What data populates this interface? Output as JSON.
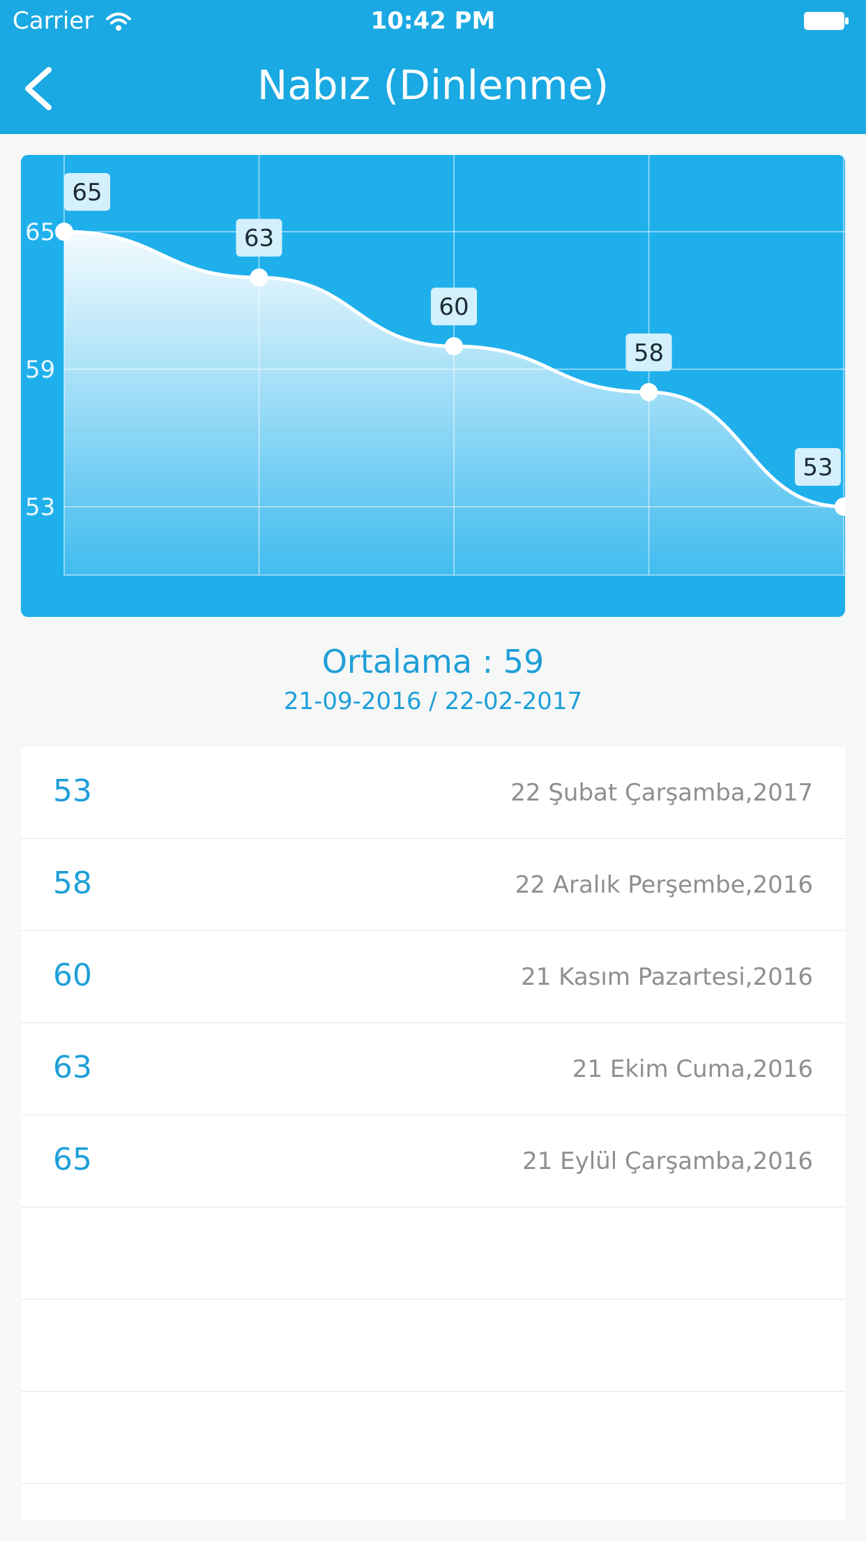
{
  "status_bar": {
    "carrier": "Carrier",
    "time": "10:42 PM"
  },
  "nav": {
    "title": "Nabız (Dinlenme)"
  },
  "chart_data": {
    "type": "area",
    "x": [
      "21-09-2016",
      "21-10-2016",
      "21-11-2016",
      "22-12-2016",
      "22-02-2017"
    ],
    "values": [
      65,
      63,
      60,
      58,
      53
    ],
    "y_ticks": [
      65,
      59,
      53
    ],
    "ylim": [
      50,
      68
    ],
    "data_labels": true,
    "grid": true,
    "line_color": "#ffffff",
    "background_color": "#1fb0ec"
  },
  "summary": {
    "average_text": "Ortalama : 59",
    "range_text": "21-09-2016 / 22-02-2017"
  },
  "list": {
    "rows": [
      {
        "value": "53",
        "date": "22 Şubat Çarşamba,2017"
      },
      {
        "value": "58",
        "date": "22 Aralık Perşembe,2016"
      },
      {
        "value": "60",
        "date": "21 Kasım Pazartesi,2016"
      },
      {
        "value": "63",
        "date": "21 Ekim Cuma,2016"
      },
      {
        "value": "65",
        "date": "21 Eylül Çarşamba,2016"
      },
      {
        "value": "",
        "date": ""
      },
      {
        "value": "",
        "date": ""
      },
      {
        "value": "",
        "date": ""
      }
    ]
  }
}
